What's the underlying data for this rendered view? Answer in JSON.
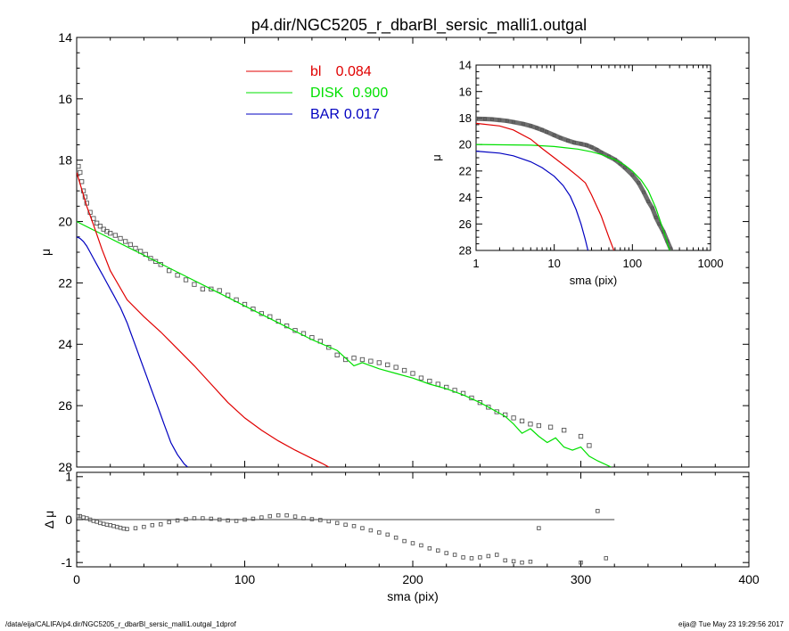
{
  "title": "p4.dir/NGC5205_r_dbarBl_sersic_malli1.outgal",
  "footer": {
    "left": "/data/eija/CALIFA/p4.dir/NGC5205_r_dbarBl_sersic_malli1.outgal_1dprof",
    "right": "eija@  Tue May 23 19:29:56 2017"
  },
  "colors": {
    "bl": "#e00000",
    "disk": "#00e000",
    "bar": "#0000c0",
    "data": "#555555",
    "axis": "#000000"
  },
  "chart_data": [
    {
      "type": "scatter",
      "name": "main-profile",
      "xlabel": "",
      "ylabel": "μ",
      "xlim": [
        0,
        400
      ],
      "ylim": [
        28,
        14
      ],
      "y_ticks": [
        14,
        16,
        18,
        20,
        22,
        24,
        26,
        28
      ],
      "legend": {
        "placement": "top-center",
        "entries": [
          {
            "label": "bl",
            "value": "0.084",
            "color": "#e00000"
          },
          {
            "label": "DISK",
            "value": "0.900",
            "color": "#00e000"
          },
          {
            "label": "BAR",
            "value": "0.017",
            "color": "#0000c0"
          }
        ]
      },
      "series": [
        {
          "key": "data",
          "style": "squares",
          "x": [
            1,
            2,
            3,
            4,
            5,
            6,
            8,
            10,
            12,
            14,
            16,
            18,
            20,
            23,
            26,
            29,
            32,
            35,
            38,
            41,
            44,
            47,
            50,
            55,
            60,
            65,
            70,
            75,
            80,
            85,
            90,
            95,
            100,
            105,
            110,
            115,
            120,
            125,
            130,
            135,
            140,
            145,
            150,
            155,
            160,
            165,
            170,
            175,
            180,
            185,
            190,
            195,
            200,
            205,
            210,
            215,
            220,
            225,
            230,
            235,
            240,
            245,
            250,
            255,
            260,
            265,
            270,
            275,
            282,
            290,
            300,
            305
          ],
          "y": [
            18.2,
            18.4,
            18.7,
            19.0,
            19.2,
            19.4,
            19.7,
            19.9,
            20.05,
            20.15,
            20.25,
            20.32,
            20.38,
            20.45,
            20.55,
            20.65,
            20.75,
            20.87,
            20.97,
            21.07,
            21.2,
            21.3,
            21.4,
            21.6,
            21.75,
            21.9,
            22.05,
            22.2,
            22.2,
            22.25,
            22.4,
            22.55,
            22.7,
            22.85,
            23.0,
            23.1,
            23.25,
            23.4,
            23.55,
            23.65,
            23.78,
            23.9,
            24.1,
            24.35,
            24.5,
            24.45,
            24.5,
            24.55,
            24.6,
            24.67,
            24.75,
            24.85,
            24.95,
            25.1,
            25.2,
            25.3,
            25.4,
            25.5,
            25.6,
            25.75,
            25.9,
            26.05,
            26.2,
            26.3,
            26.4,
            26.5,
            26.6,
            26.65,
            26.7,
            26.8,
            27.0,
            27.3
          ],
          "color": "#555555"
        },
        {
          "key": "disk",
          "style": "line",
          "color": "#00e000",
          "x": [
            0,
            20,
            40,
            60,
            80,
            100,
            120,
            140,
            155,
            160,
            165,
            170,
            180,
            190,
            200,
            210,
            220,
            230,
            240,
            250,
            255,
            260,
            265,
            270,
            275,
            280,
            285,
            290,
            295,
            300,
            305,
            310,
            318
          ],
          "y": [
            20.0,
            20.55,
            21.1,
            21.65,
            22.2,
            22.75,
            23.3,
            23.85,
            24.2,
            24.45,
            24.7,
            24.6,
            24.8,
            24.95,
            25.1,
            25.3,
            25.45,
            25.65,
            25.9,
            26.2,
            26.35,
            26.6,
            26.9,
            26.75,
            27.0,
            27.2,
            27.05,
            27.35,
            27.45,
            27.35,
            27.65,
            27.8,
            28.0
          ]
        },
        {
          "key": "bl",
          "style": "line",
          "color": "#e00000",
          "x": [
            0,
            3,
            6,
            10,
            15,
            20,
            30,
            40,
            50,
            60,
            70,
            80,
            90,
            100,
            110,
            120,
            130,
            140,
            146,
            150
          ],
          "y": [
            18.4,
            18.95,
            19.5,
            20.1,
            20.9,
            21.6,
            22.55,
            23.1,
            23.6,
            24.15,
            24.7,
            25.3,
            25.9,
            26.4,
            26.8,
            27.15,
            27.45,
            27.72,
            27.88,
            28.0
          ]
        },
        {
          "key": "bar",
          "style": "line",
          "color": "#0000c0",
          "x": [
            0,
            2,
            4,
            6,
            8,
            10,
            12,
            14,
            16,
            18,
            20,
            22,
            24,
            26,
            28,
            30,
            32,
            34,
            36,
            38,
            40,
            42,
            44,
            46,
            48,
            50,
            52,
            54,
            56,
            58,
            60,
            62,
            64,
            66
          ],
          "y": [
            20.5,
            20.55,
            20.65,
            20.8,
            21.0,
            21.2,
            21.4,
            21.6,
            21.8,
            22.0,
            22.2,
            22.4,
            22.6,
            22.8,
            23.05,
            23.3,
            23.6,
            23.9,
            24.2,
            24.5,
            24.8,
            25.1,
            25.4,
            25.7,
            26.0,
            26.3,
            26.6,
            26.9,
            27.2,
            27.4,
            27.6,
            27.75,
            27.9,
            28.0
          ]
        }
      ]
    },
    {
      "type": "scatter",
      "name": "residual",
      "xlabel": "sma (pix)",
      "ylabel": "Δ μ",
      "xlim": [
        0,
        400
      ],
      "ylim": [
        -1.1,
        1.1
      ],
      "x_ticks": [
        0,
        100,
        200,
        300,
        400
      ],
      "y_ticks": [
        -1,
        0,
        1
      ],
      "series": [
        {
          "key": "reference",
          "style": "line",
          "color": "#000000",
          "x": [
            0,
            320
          ],
          "y": [
            0,
            0
          ]
        },
        {
          "key": "residual",
          "style": "squares",
          "color": "#555555",
          "x": [
            1,
            2,
            4,
            6,
            8,
            10,
            12,
            14,
            16,
            18,
            20,
            22,
            24,
            26,
            28,
            30,
            35,
            40,
            45,
            50,
            55,
            60,
            65,
            70,
            75,
            80,
            85,
            90,
            95,
            100,
            105,
            110,
            115,
            120,
            125,
            130,
            135,
            140,
            145,
            150,
            155,
            160,
            165,
            170,
            175,
            180,
            185,
            190,
            195,
            200,
            205,
            210,
            215,
            220,
            225,
            230,
            235,
            240,
            245,
            250,
            255,
            260,
            265,
            270,
            275,
            300,
            310,
            315
          ],
          "y": [
            0.08,
            0.08,
            0.05,
            0.03,
            0.0,
            -0.03,
            -0.05,
            -0.08,
            -0.1,
            -0.12,
            -0.13,
            -0.15,
            -0.17,
            -0.19,
            -0.21,
            -0.22,
            -0.2,
            -0.17,
            -0.13,
            -0.11,
            -0.06,
            -0.02,
            0.01,
            0.03,
            0.03,
            0.02,
            0.0,
            -0.02,
            -0.03,
            0.0,
            0.02,
            0.05,
            0.08,
            0.1,
            0.1,
            0.07,
            0.03,
            0.01,
            -0.01,
            -0.04,
            -0.08,
            -0.12,
            -0.15,
            -0.2,
            -0.25,
            -0.3,
            -0.35,
            -0.42,
            -0.5,
            -0.55,
            -0.6,
            -0.67,
            -0.72,
            -0.78,
            -0.82,
            -0.88,
            -0.9,
            -0.88,
            -0.85,
            -0.82,
            -0.95,
            -0.97,
            -1.0,
            -0.98,
            -0.2,
            -1.0,
            0.2,
            -0.9
          ]
        }
      ]
    },
    {
      "type": "scatter",
      "name": "inset-log",
      "xlabel": "sma (pix)",
      "ylabel": "μ",
      "xscale": "log",
      "xlim": [
        1,
        1000
      ],
      "ylim": [
        28,
        14
      ],
      "x_ticks": [
        1,
        10,
        100,
        1000
      ],
      "y_ticks": [
        14,
        16,
        18,
        20,
        22,
        24,
        26,
        28
      ],
      "series": [
        {
          "key": "data",
          "style": "squares",
          "color": "#555555",
          "x": [
            1,
            1.3,
            1.6,
            2,
            2.5,
            3,
            4,
            5,
            6,
            7,
            8,
            10,
            12,
            15,
            18,
            22,
            26,
            30,
            35,
            40,
            50,
            60,
            70,
            80,
            100,
            120,
            140,
            160,
            180,
            200,
            220,
            250,
            280,
            310
          ],
          "y": [
            18.05,
            18.07,
            18.1,
            18.15,
            18.22,
            18.3,
            18.45,
            18.6,
            18.75,
            18.9,
            19.05,
            19.3,
            19.5,
            19.7,
            19.85,
            19.95,
            20.05,
            20.2,
            20.4,
            20.6,
            20.9,
            21.15,
            21.45,
            21.75,
            22.3,
            22.9,
            23.6,
            24.3,
            24.8,
            25.5,
            26.0,
            26.6,
            27.3,
            27.9
          ],
          "color_note": "thick band"
        },
        {
          "key": "disk",
          "style": "line",
          "color": "#00e000",
          "x": [
            1,
            5,
            10,
            20,
            30,
            40,
            60,
            80,
            100,
            130,
            160,
            200,
            250,
            300
          ],
          "y": [
            20.0,
            20.05,
            20.15,
            20.35,
            20.55,
            20.75,
            21.15,
            21.55,
            22.0,
            22.7,
            23.5,
            24.8,
            26.5,
            28.0
          ]
        },
        {
          "key": "bl",
          "style": "line",
          "color": "#e00000",
          "x": [
            1,
            2,
            3,
            5,
            7,
            10,
            15,
            20,
            25,
            30,
            40,
            50,
            58
          ],
          "y": [
            18.4,
            18.6,
            18.9,
            19.6,
            20.3,
            21.0,
            21.8,
            22.4,
            22.9,
            23.8,
            25.4,
            27.0,
            28.0
          ]
        },
        {
          "key": "bar",
          "style": "line",
          "color": "#0000c0",
          "x": [
            1,
            2,
            3,
            5,
            7,
            10,
            13,
            16,
            19,
            22,
            25,
            27
          ],
          "y": [
            20.5,
            20.65,
            20.85,
            21.3,
            21.75,
            22.4,
            23.1,
            23.9,
            24.9,
            26.0,
            27.2,
            28.0
          ]
        }
      ]
    }
  ]
}
